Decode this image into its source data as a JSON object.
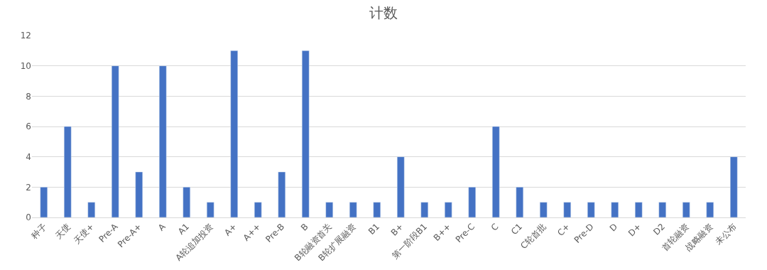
{
  "chart_data": {
    "type": "bar",
    "title": "计数",
    "categories": [
      "种子",
      "天使",
      "天使+",
      "Pre-A",
      "Pre-A+",
      "A",
      "A1",
      "A轮追加投资",
      "A+",
      "A++",
      "Pre-B",
      "B",
      "B轮融资首关",
      "B轮扩展融资",
      "B1",
      "B+",
      "第一阶段B1",
      "B++",
      "Pre-C",
      "C",
      "C1",
      "C轮首批",
      "C+",
      "Pre-D",
      "D",
      "D+",
      "D2",
      "首轮融资",
      "战略融资",
      "未公布"
    ],
    "values": [
      2,
      6,
      1,
      10,
      3,
      10,
      2,
      1,
      11,
      1,
      3,
      11,
      1,
      1,
      1,
      4,
      1,
      1,
      2,
      6,
      2,
      1,
      1,
      1,
      1,
      1,
      1,
      1,
      1,
      4
    ],
    "color": "#4472c4",
    "ylim": [
      0,
      12
    ],
    "yticks": [
      0,
      2,
      4,
      6,
      8,
      10,
      12
    ],
    "grid": "y"
  }
}
